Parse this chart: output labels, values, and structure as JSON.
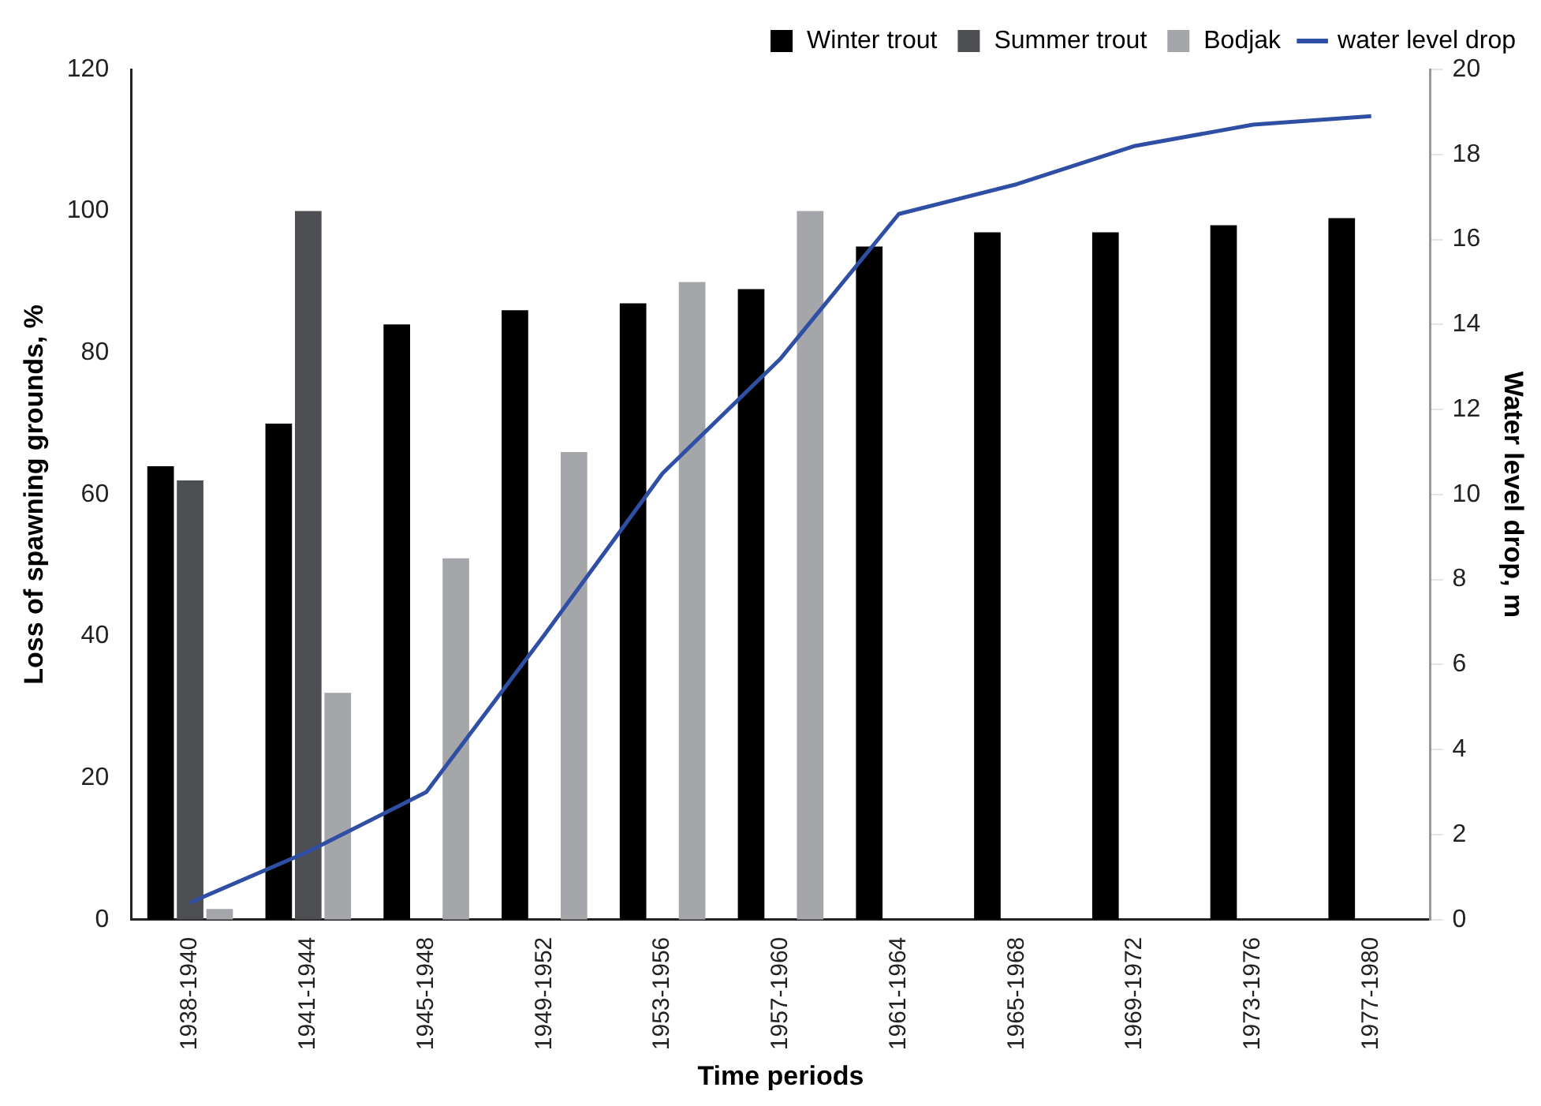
{
  "chart_data": {
    "type": "bar",
    "xlabel": "Time periods",
    "ylabel": "Loss of spawning grounds, %",
    "y2label": "Water level drop, m",
    "categories": [
      "1938-1940",
      "1941-1944",
      "1945-1948",
      "1949-1952",
      "1953-1956",
      "1957-1960",
      "1961-1964",
      "1965-1968",
      "1969-1972",
      "1973-1976",
      "1977-1980"
    ],
    "series": [
      {
        "name": "Winter trout",
        "color": "#000000",
        "values": [
          64,
          70,
          84,
          86,
          87,
          89,
          95,
          97,
          97,
          98,
          99
        ]
      },
      {
        "name": "Summer trout",
        "color": "#4d4f53",
        "values": [
          62,
          100,
          null,
          null,
          null,
          null,
          null,
          null,
          null,
          null,
          null
        ]
      },
      {
        "name": "Bodjak",
        "color": "#a5a6aa",
        "values": [
          1.5,
          32,
          51,
          66,
          90,
          100,
          null,
          null,
          null,
          null,
          null
        ]
      },
      {
        "name": "water level drop",
        "type": "line",
        "axis": "y2",
        "color": "#2e4fa3",
        "values": [
          0.4,
          1.6,
          3.0,
          6.7,
          10.5,
          13.2,
          16.6,
          17.3,
          18.2,
          18.7,
          18.9
        ]
      }
    ],
    "ylim": [
      0,
      120
    ],
    "yticks": [
      0,
      20,
      40,
      60,
      80,
      100,
      120
    ],
    "y2lim": [
      0,
      20
    ],
    "y2ticks": [
      0,
      2,
      4,
      6,
      8,
      10,
      12,
      14,
      16,
      18,
      20
    ],
    "grid": false,
    "legend": "top right",
    "marker": "none"
  }
}
